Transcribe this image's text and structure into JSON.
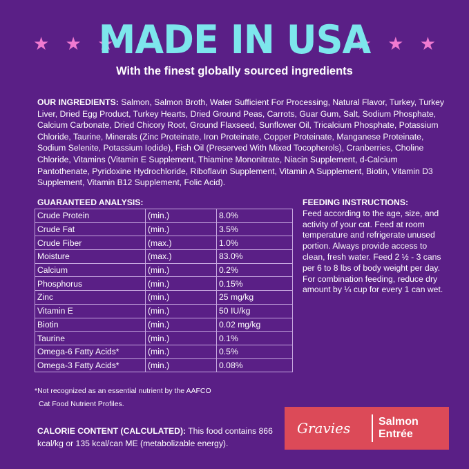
{
  "header": {
    "stars": "★ ★ ★",
    "title": "MADE IN USA",
    "subtitle": "With the finest globally sourced ingredients"
  },
  "ingredients": {
    "label": "OUR INGREDIENTS:",
    "text": " Salmon, Salmon Broth, Water Sufficient For Processing, Natural Flavor, Turkey, Turkey Liver, Dried Egg Product, Turkey Hearts, Dried Ground Peas, Carrots, Guar Gum, Salt, Sodium Phosphate, Calcium Carbonate, Dried Chicory Root, Ground Flaxseed, Sunflower Oil, Tricalcium Phosphate, Potassium Chloride, Taurine, Minerals (Zinc Proteinate, Iron Proteinate, Copper Proteinate, Manganese Proteinate, Sodium Selenite, Potassium Iodide), Fish Oil (Preserved With Mixed Tocopherols), Cranberries, Choline Chloride, Vitamins (Vitamin E Supplement, Thiamine Mononitrate, Niacin Supplement, d-Calcium Pantothenate, Pyridoxine Hydrochloride, Riboflavin Supplement, Vitamin A Supplement, Biotin, Vitamin D3 Supplement, Vitamin B12 Supplement, Folic Acid)."
  },
  "analysis": {
    "heading": "GUARANTEED ANALYSIS:",
    "rows": [
      {
        "nutrient": "Crude Protein",
        "qualifier": "(min.)",
        "value": "8.0%"
      },
      {
        "nutrient": "Crude Fat",
        "qualifier": "(min.)",
        "value": "3.5%"
      },
      {
        "nutrient": "Crude Fiber",
        "qualifier": "(max.)",
        "value": "1.0%"
      },
      {
        "nutrient": "Moisture",
        "qualifier": "(max.)",
        "value": "83.0%"
      },
      {
        "nutrient": "Calcium",
        "qualifier": "(min.)",
        "value": "0.2%"
      },
      {
        "nutrient": "Phosphorus",
        "qualifier": "(min.)",
        "value": "0.15%"
      },
      {
        "nutrient": "Zinc",
        "qualifier": "(min.)",
        "value": "25 mg/kg"
      },
      {
        "nutrient": "Vitamin E",
        "qualifier": "(min.)",
        "value": "50 IU/kg"
      },
      {
        "nutrient": "Biotin",
        "qualifier": "(min.)",
        "value": "0.02 mg/kg"
      },
      {
        "nutrient": "Taurine",
        "qualifier": "(min.)",
        "value": "0.1%"
      },
      {
        "nutrient": "Omega-6 Fatty Acids*",
        "qualifier": "(min.)",
        "value": "0.5%"
      },
      {
        "nutrient": "Omega-3 Fatty Acids*",
        "qualifier": "(min.)",
        "value": "0.08%"
      }
    ],
    "footnote_line1": "*Not recognized as an essential nutrient by the AAFCO",
    "footnote_line2": "Cat Food Nutrient Profiles."
  },
  "calorie": {
    "label": "CALORIE CONTENT (CALCULATED):",
    "text": " This food contains 866 kcal/kg or 135 kcal/can ME (metabolizable energy)."
  },
  "feeding": {
    "heading": "FEEDING INSTRUCTIONS:",
    "text": "Feed according to the age, size, and activity of your cat. Feed at room temperature and refrigerate unused portion. Always provide access to clean, fresh water. Feed 2 ½ - 3 cans per 6 to 8 lbs of body weight per day. For combination feeding, reduce dry amount by ¼ cup for every 1 can wet."
  },
  "badge": {
    "script": "Gravies",
    "product_line1": "Salmon",
    "product_line2": "Entrée"
  },
  "colors": {
    "background": "#5a1f86",
    "title": "#7de6ec",
    "stars": "#f07ad0",
    "badge": "#dc4a58"
  }
}
